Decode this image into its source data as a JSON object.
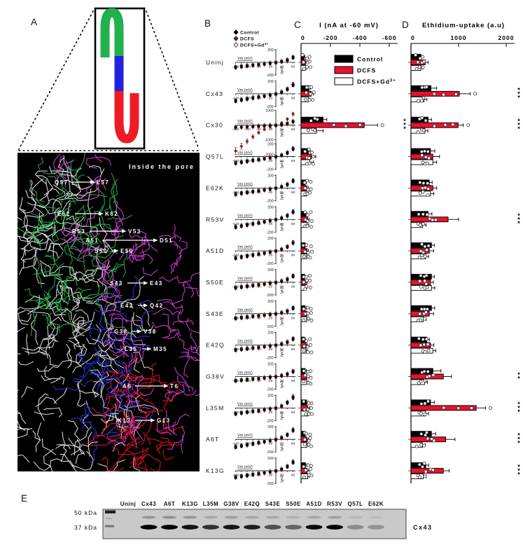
{
  "panels": {
    "a": {
      "letter": "A",
      "inside_pore": "Inside the pore",
      "mutations": [
        {
          "from": "Q57",
          "to": "L57"
        },
        {
          "from": "E62",
          "to": "K62"
        },
        {
          "from": "R53",
          "to": "V53"
        },
        {
          "from": "A51",
          "to": "D51"
        },
        {
          "from": "S50",
          "to": "E50"
        },
        {
          "from": "S43",
          "to": "E43"
        },
        {
          "from": "E42",
          "to": "Q42"
        },
        {
          "from": "G38",
          "to": "V38"
        },
        {
          "from": "L35",
          "to": "M35"
        },
        {
          "from": "A6",
          "to": "T6"
        },
        {
          "from": "K13",
          "to": "G13"
        }
      ],
      "colors": {
        "nterm_green": "#22b14c",
        "mid_blue": "#2222dd",
        "cterm_red": "#ed1c24",
        "residue_magenta": "#d63fd6",
        "backbone_white": "#e8e8e8",
        "pore_background": "#000000"
      }
    },
    "b": {
      "letter": "B",
      "legend": [
        {
          "label": "Control",
          "color": "#000000",
          "marker": "filled-diamond"
        },
        {
          "label": "DCFS",
          "color": "#8b1a1a",
          "marker": "filled-diamond"
        },
        {
          "label": "DCFS+Gd",
          "sup": "3+",
          "color": "#ffffff",
          "marker": "open-diamond"
        }
      ]
    },
    "c": {
      "letter": "C",
      "legend": [
        {
          "label": "Control",
          "color": "#000000"
        },
        {
          "label": "DCFS",
          "color": "#e8112d"
        },
        {
          "label": "DCFS+Gd",
          "sup": "3+",
          "color": "#ffffff"
        }
      ]
    },
    "d": {
      "letter": "D"
    },
    "e": {
      "letter": "E",
      "markers": [
        "50 kDa",
        "37 kDa"
      ],
      "blot_label": "Cx43",
      "lanes": [
        {
          "name": "Uninj",
          "band": 0,
          "upper": 0
        },
        {
          "name": "Cx43",
          "band": 1.0,
          "upper": 0.3
        },
        {
          "name": "A6T",
          "band": 1.0,
          "upper": 0.35
        },
        {
          "name": "K13G",
          "band": 0.9,
          "upper": 0.3
        },
        {
          "name": "L35M",
          "band": 0.75,
          "upper": 0.2
        },
        {
          "name": "G38V",
          "band": 0.9,
          "upper": 0.25
        },
        {
          "name": "E42Q",
          "band": 0.85,
          "upper": 0.2
        },
        {
          "name": "S43E",
          "band": 0.6,
          "upper": 0.2
        },
        {
          "name": "S50E",
          "band": 0.5,
          "upper": 0.15
        },
        {
          "name": "A51D",
          "band": 0.95,
          "upper": 0.2
        },
        {
          "name": "R53V",
          "band": 1.0,
          "upper": 0.25
        },
        {
          "name": "Q57L",
          "band": 0.3,
          "upper": 0.1
        },
        {
          "name": "E62K",
          "band": 0.25,
          "upper": 0.08
        }
      ]
    }
  },
  "chart_data": [
    {
      "id": "iv_curves",
      "type": "line",
      "x_label": "Vm (mV)",
      "y_label": "I(nA)",
      "x": [
        -140,
        -120,
        -100,
        -80,
        -60,
        -40,
        -20,
        0,
        20,
        40,
        60
      ],
      "rows": [
        {
          "label": "Uninj",
          "ylim": [
            -200,
            200
          ],
          "yticks": [
            200,
            -200
          ],
          "y": [
            -75,
            -64,
            -53,
            -43,
            -33,
            -22,
            -11,
            0,
            15,
            38,
            80
          ]
        },
        {
          "label": "Cx43",
          "ylim": [
            -200,
            200
          ],
          "yticks": [
            200,
            -200
          ],
          "y": [
            -110,
            -94,
            -79,
            -64,
            -49,
            -33,
            -17,
            0,
            28,
            75,
            145
          ]
        },
        {
          "label": "Cx30",
          "ylim": [
            -2000,
            1000
          ],
          "yticks": [
            1000,
            -1000,
            -2000
          ],
          "y": [
            -130,
            -110,
            -90,
            -72,
            -54,
            -36,
            -18,
            0,
            45,
            130,
            260
          ],
          "y_dcfs": [
            -1750,
            -1430,
            -1100,
            -790,
            -510,
            -290,
            -130,
            0,
            160,
            420,
            760
          ]
        },
        {
          "label": "Q57L",
          "ylim": [
            -200,
            200
          ],
          "yticks": [
            200,
            -200
          ],
          "y": [
            -100,
            -86,
            -72,
            -58,
            -44,
            -29,
            -15,
            0,
            24,
            62,
            125
          ]
        },
        {
          "label": "E62K",
          "ylim": [
            -200,
            200
          ],
          "yticks": [
            200,
            -200
          ],
          "y": [
            -95,
            -81,
            -68,
            -55,
            -41,
            -27,
            -14,
            0,
            22,
            58,
            115
          ]
        },
        {
          "label": "R53V",
          "ylim": [
            -200,
            200
          ],
          "yticks": [
            200,
            -200
          ],
          "y": [
            -118,
            -101,
            -85,
            -68,
            -51,
            -34,
            -17,
            0,
            24,
            62,
            122
          ]
        },
        {
          "label": "A51D",
          "ylim": [
            -200,
            200
          ],
          "yticks": [
            200,
            -200
          ],
          "y": [
            -112,
            -96,
            -80,
            -65,
            -49,
            -33,
            -16,
            0,
            26,
            66,
            130
          ]
        },
        {
          "label": "S50E",
          "ylim": [
            -200,
            200
          ],
          "yticks": [
            200,
            -200
          ],
          "y": [
            -85,
            -73,
            -61,
            -49,
            -37,
            -25,
            -12,
            0,
            20,
            50,
            100
          ]
        },
        {
          "label": "S43E",
          "ylim": [
            -200,
            200
          ],
          "yticks": [
            200,
            -200
          ],
          "y": [
            -70,
            -60,
            -50,
            -40,
            -30,
            -20,
            -10,
            0,
            17,
            44,
            90
          ]
        },
        {
          "label": "E42Q",
          "ylim": [
            -200,
            200
          ],
          "yticks": [
            200,
            -200
          ],
          "y": [
            -75,
            -64,
            -54,
            -43,
            -32,
            -21,
            -11,
            0,
            19,
            49,
            100
          ]
        },
        {
          "label": "G38V",
          "ylim": [
            -200,
            200
          ],
          "yticks": [
            200,
            -200
          ],
          "y": [
            -65,
            -56,
            -46,
            -37,
            -28,
            -19,
            -9,
            0,
            16,
            40,
            82
          ]
        },
        {
          "label": "L35M",
          "ylim": [
            -200,
            200
          ],
          "yticks": [
            200,
            -200
          ],
          "y": [
            -90,
            -77,
            -64,
            -51,
            -39,
            -26,
            -13,
            0,
            32,
            88,
            170
          ]
        },
        {
          "label": "A6T",
          "ylim": [
            -200,
            200
          ],
          "yticks": [
            200,
            -200
          ],
          "y": [
            -118,
            -101,
            -85,
            -68,
            -51,
            -34,
            -17,
            0,
            28,
            74,
            148
          ]
        },
        {
          "label": "K13G",
          "ylim": [
            -200,
            200
          ],
          "yticks": [
            200,
            -200
          ],
          "y": [
            -100,
            -86,
            -72,
            -57,
            -43,
            -29,
            -14,
            0,
            26,
            70,
            138
          ]
        }
      ]
    },
    {
      "id": "current_at_minus60",
      "type": "bar",
      "title": "I (nA at -60 mV)",
      "ticks": [
        0,
        -200,
        -400,
        -600
      ],
      "xlim": [
        0,
        -700
      ],
      "series": [
        "Control",
        "DCFS",
        "DCFS+Gd3+"
      ],
      "series_colors": [
        "#000000",
        "#e8112d",
        "#ffffff"
      ],
      "rows": [
        {
          "label": "Uninj",
          "values": [
            -20,
            -30,
            -30
          ],
          "err": [
            6,
            8,
            8
          ],
          "sig": ""
        },
        {
          "label": "Cx43",
          "values": [
            -55,
            -70,
            -50
          ],
          "err": [
            10,
            15,
            10
          ],
          "sig": ""
        },
        {
          "label": "Cx30",
          "values": [
            -150,
            -430,
            -105
          ],
          "err": [
            25,
            90,
            45
          ],
          "sig": "***"
        },
        {
          "label": "Q57L",
          "values": [
            -50,
            -70,
            -60
          ],
          "err": [
            12,
            30,
            25
          ],
          "sig": ""
        },
        {
          "label": "E62K",
          "values": [
            -28,
            -40,
            -38
          ],
          "err": [
            8,
            10,
            10
          ],
          "sig": ""
        },
        {
          "label": "R53V",
          "values": [
            -32,
            -45,
            -42
          ],
          "err": [
            8,
            10,
            10
          ],
          "sig": ""
        },
        {
          "label": "A51D",
          "values": [
            -28,
            -40,
            -38
          ],
          "err": [
            8,
            10,
            10
          ],
          "sig": ""
        },
        {
          "label": "S50E",
          "values": [
            -24,
            -35,
            -30
          ],
          "err": [
            7,
            9,
            9
          ],
          "sig": ""
        },
        {
          "label": "S43E",
          "values": [
            -28,
            -40,
            -38
          ],
          "err": [
            8,
            10,
            10
          ],
          "sig": ""
        },
        {
          "label": "E42Q",
          "values": [
            -24,
            -35,
            -34
          ],
          "err": [
            7,
            9,
            9
          ],
          "sig": ""
        },
        {
          "label": "G38V",
          "values": [
            -28,
            -40,
            -38
          ],
          "err": [
            8,
            10,
            10
          ],
          "sig": ""
        },
        {
          "label": "L35M",
          "values": [
            -38,
            -45,
            -48
          ],
          "err": [
            10,
            12,
            12
          ],
          "sig": ""
        },
        {
          "label": "A6T",
          "values": [
            -28,
            -40,
            -40
          ],
          "err": [
            8,
            10,
            10
          ],
          "sig": ""
        },
        {
          "label": "K13G",
          "values": [
            -30,
            -42,
            -45
          ],
          "err": [
            8,
            10,
            10
          ],
          "sig": ""
        }
      ]
    },
    {
      "id": "ethidium_uptake",
      "type": "bar",
      "title": "Ethidium-uptake (a.u)",
      "ticks": [
        0,
        1000,
        2000
      ],
      "xlim": [
        0,
        2200
      ],
      "series": [
        "Control",
        "DCFS",
        "DCFS+Gd3+"
      ],
      "series_colors": [
        "#000000",
        "#e8112d",
        "#ffffff"
      ],
      "rows": [
        {
          "label": "Uninj",
          "values": [
            210,
            300,
            210
          ],
          "err": [
            40,
            60,
            40
          ],
          "sig": ""
        },
        {
          "label": "Cx43",
          "values": [
            420,
            1015,
            275
          ],
          "err": [
            120,
            230,
            60
          ],
          "sig": "***"
        },
        {
          "label": "Cx30",
          "values": [
            360,
            990,
            295
          ],
          "err": [
            70,
            110,
            60
          ],
          "sig": "***"
        },
        {
          "label": "Q57L",
          "values": [
            410,
            460,
            460
          ],
          "err": [
            90,
            140,
            80
          ],
          "sig": ""
        },
        {
          "label": "E62K",
          "values": [
            385,
            460,
            410
          ],
          "err": [
            60,
            80,
            70
          ],
          "sig": ""
        },
        {
          "label": "R53V",
          "values": [
            360,
            780,
            240
          ],
          "err": [
            80,
            220,
            80
          ],
          "sig": "***"
        },
        {
          "label": "A51D",
          "values": [
            430,
            385,
            310
          ],
          "err": [
            60,
            90,
            60
          ],
          "sig": ""
        },
        {
          "label": "S50E",
          "values": [
            430,
            410,
            430
          ],
          "err": [
            60,
            60,
            70
          ],
          "sig": ""
        },
        {
          "label": "S43E",
          "values": [
            430,
            385,
            260
          ],
          "err": [
            70,
            90,
            60
          ],
          "sig": ""
        },
        {
          "label": "E42Q",
          "values": [
            335,
            410,
            460
          ],
          "err": [
            50,
            70,
            60
          ],
          "sig": ""
        },
        {
          "label": "G38V",
          "values": [
            460,
            680,
            285
          ],
          "err": [
            170,
            170,
            60
          ],
          "sig": "**"
        },
        {
          "label": "L35M",
          "values": [
            410,
            1370,
            310
          ],
          "err": [
            80,
            195,
            60
          ],
          "sig": "***"
        },
        {
          "label": "A6T",
          "values": [
            430,
            730,
            240
          ],
          "err": [
            90,
            195,
            60
          ],
          "sig": "***"
        },
        {
          "label": "K13G",
          "values": [
            310,
            680,
            260
          ],
          "err": [
            60,
            120,
            60
          ],
          "sig": "***"
        }
      ]
    }
  ]
}
